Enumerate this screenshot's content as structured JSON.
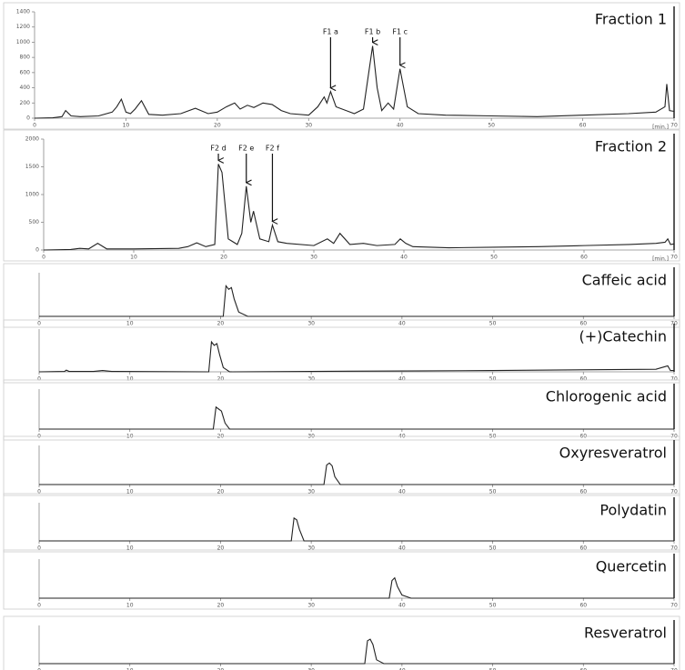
{
  "chart_data": [
    {
      "type": "line",
      "title": "Fraction 1",
      "x_label": "[min.]",
      "color": "#222222",
      "xlim": [
        0,
        70
      ],
      "xticks": [
        0,
        10,
        20,
        30,
        40,
        50,
        60,
        70
      ],
      "ylim": [
        0,
        1400
      ],
      "yticks": [
        0,
        200,
        400,
        600,
        800,
        1000,
        1200,
        1400
      ],
      "annotations": [
        {
          "label": "F1 a",
          "x": 32.4
        },
        {
          "label": "F1 b",
          "x": 37
        },
        {
          "label": "F1 c",
          "x": 40
        }
      ],
      "x": [
        0,
        2,
        3,
        3.4,
        4,
        5,
        7,
        8.5,
        9,
        9.5,
        10,
        10.5,
        11,
        11.7,
        12.5,
        14,
        16,
        17.6,
        19,
        20,
        21,
        21.9,
        22.5,
        23.3,
        24,
        25,
        26,
        27,
        28,
        30,
        31,
        31.7,
        32,
        32.4,
        33,
        35,
        36,
        37,
        37.5,
        38,
        38.7,
        39.3,
        40,
        40.8,
        42,
        45,
        50,
        55,
        60,
        65,
        68,
        69,
        69.2,
        69.5,
        70
      ],
      "values": [
        0,
        5,
        20,
        100,
        30,
        20,
        30,
        80,
        150,
        250,
        80,
        60,
        120,
        230,
        50,
        40,
        60,
        130,
        60,
        80,
        150,
        200,
        120,
        170,
        140,
        200,
        180,
        100,
        60,
        40,
        150,
        280,
        200,
        350,
        150,
        60,
        120,
        950,
        400,
        100,
        200,
        120,
        650,
        150,
        60,
        40,
        30,
        20,
        40,
        60,
        80,
        150,
        450,
        100,
        90
      ]
    },
    {
      "type": "line",
      "title": "Fraction 2",
      "x_label": "[min.]",
      "color": "#222222",
      "xlim": [
        0,
        70
      ],
      "xticks": [
        0,
        10,
        20,
        30,
        40,
        50,
        60,
        70
      ],
      "ylim": [
        0,
        2000
      ],
      "yticks": [
        0,
        500,
        1000,
        1500,
        2000
      ],
      "annotations": [
        {
          "label": "F2 d",
          "x": 19.4
        },
        {
          "label": "F2 e",
          "x": 22.5
        },
        {
          "label": "F2 f",
          "x": 25.4
        }
      ],
      "x": [
        0,
        3,
        4,
        5,
        6,
        7,
        10,
        15,
        16,
        17,
        18,
        19,
        19.4,
        19.8,
        20.5,
        21.5,
        22,
        22.5,
        23,
        23.3,
        24,
        25,
        25.4,
        26,
        27,
        30,
        31.5,
        32.2,
        32.9,
        34,
        35.5,
        37,
        39,
        39.6,
        40.2,
        41,
        45,
        50,
        55,
        60,
        65,
        68,
        69,
        69.3,
        69.6,
        70
      ],
      "values": [
        0,
        10,
        30,
        20,
        120,
        20,
        20,
        30,
        60,
        130,
        60,
        100,
        1550,
        1400,
        200,
        100,
        300,
        1150,
        500,
        700,
        200,
        150,
        450,
        150,
        120,
        80,
        200,
        120,
        300,
        100,
        120,
        80,
        100,
        200,
        120,
        60,
        40,
        50,
        60,
        80,
        100,
        120,
        140,
        200,
        100,
        110
      ]
    },
    {
      "type": "line",
      "title": "Caffeic acid",
      "color": "#222222",
      "xlim": [
        0,
        70
      ],
      "xticks": [
        0,
        10,
        20,
        30,
        40,
        50,
        60,
        70
      ],
      "ylim": [
        0,
        100
      ],
      "x": [
        0,
        20.3,
        20.6,
        20.9,
        21.2,
        21.5,
        22,
        23,
        70
      ],
      "values": [
        0,
        0,
        70,
        62,
        66,
        40,
        10,
        0,
        0
      ]
    },
    {
      "type": "line",
      "title": "(+)Catechin",
      "color": "#222222",
      "xlim": [
        0,
        70
      ],
      "xticks": [
        0,
        10,
        20,
        30,
        40,
        50,
        60,
        70
      ],
      "ylim": [
        0,
        100
      ],
      "x": [
        0,
        2.8,
        3,
        3.3,
        6,
        7,
        8,
        18.7,
        19,
        19.3,
        19.6,
        19.9,
        20.3,
        21,
        30,
        50,
        68,
        69.3,
        69.6,
        70
      ],
      "values": [
        0,
        1,
        4,
        1,
        1,
        3,
        1,
        0,
        70,
        62,
        66,
        40,
        10,
        0,
        1,
        3,
        6,
        14,
        3,
        3
      ]
    },
    {
      "type": "line",
      "title": "Chlorogenic acid",
      "color": "#222222",
      "xlim": [
        0,
        70
      ],
      "xticks": [
        0,
        10,
        20,
        30,
        40,
        50,
        60,
        70
      ],
      "ylim": [
        0,
        100
      ],
      "x": [
        0,
        19.2,
        19.5,
        19.8,
        20.1,
        20.5,
        21,
        70
      ],
      "values": [
        0,
        0,
        55,
        50,
        45,
        15,
        0,
        0
      ]
    },
    {
      "type": "line",
      "title": "Oxyresveratrol",
      "color": "#222222",
      "xlim": [
        0,
        70
      ],
      "xticks": [
        0,
        10,
        20,
        30,
        40,
        50,
        60,
        70
      ],
      "ylim": [
        0,
        100
      ],
      "x": [
        0,
        31.4,
        31.7,
        32,
        32.3,
        32.6,
        33.2,
        70
      ],
      "values": [
        0,
        0,
        50,
        55,
        48,
        20,
        0,
        0
      ]
    },
    {
      "type": "line",
      "title": "Polydatin",
      "color": "#222222",
      "xlim": [
        0,
        70
      ],
      "xticks": [
        0,
        10,
        20,
        30,
        40,
        50,
        60,
        70
      ],
      "ylim": [
        0,
        100
      ],
      "x": [
        0,
        27.8,
        28.1,
        28.4,
        28.7,
        29.2,
        70
      ],
      "values": [
        0,
        0,
        60,
        55,
        30,
        0,
        0
      ]
    },
    {
      "type": "line",
      "title": "Quercetin",
      "color": "#222222",
      "xlim": [
        0,
        70
      ],
      "xticks": [
        0,
        10,
        20,
        30,
        40,
        50,
        60,
        70
      ],
      "ylim": [
        0,
        100
      ],
      "x": [
        0,
        38.6,
        38.9,
        39.2,
        39.5,
        40,
        41,
        70
      ],
      "values": [
        0,
        0,
        45,
        52,
        30,
        8,
        0,
        0
      ]
    },
    {
      "type": "line",
      "title": "Resveratrol",
      "color": "#222222",
      "xlim": [
        0,
        70
      ],
      "xticks": [
        0,
        10,
        20,
        30,
        40,
        50,
        60,
        70
      ],
      "ylim": [
        0,
        100
      ],
      "x": [
        0,
        35.9,
        36.2,
        36.5,
        36.8,
        37.2,
        38,
        70
      ],
      "values": [
        0,
        0,
        60,
        64,
        50,
        10,
        0,
        0
      ]
    }
  ]
}
